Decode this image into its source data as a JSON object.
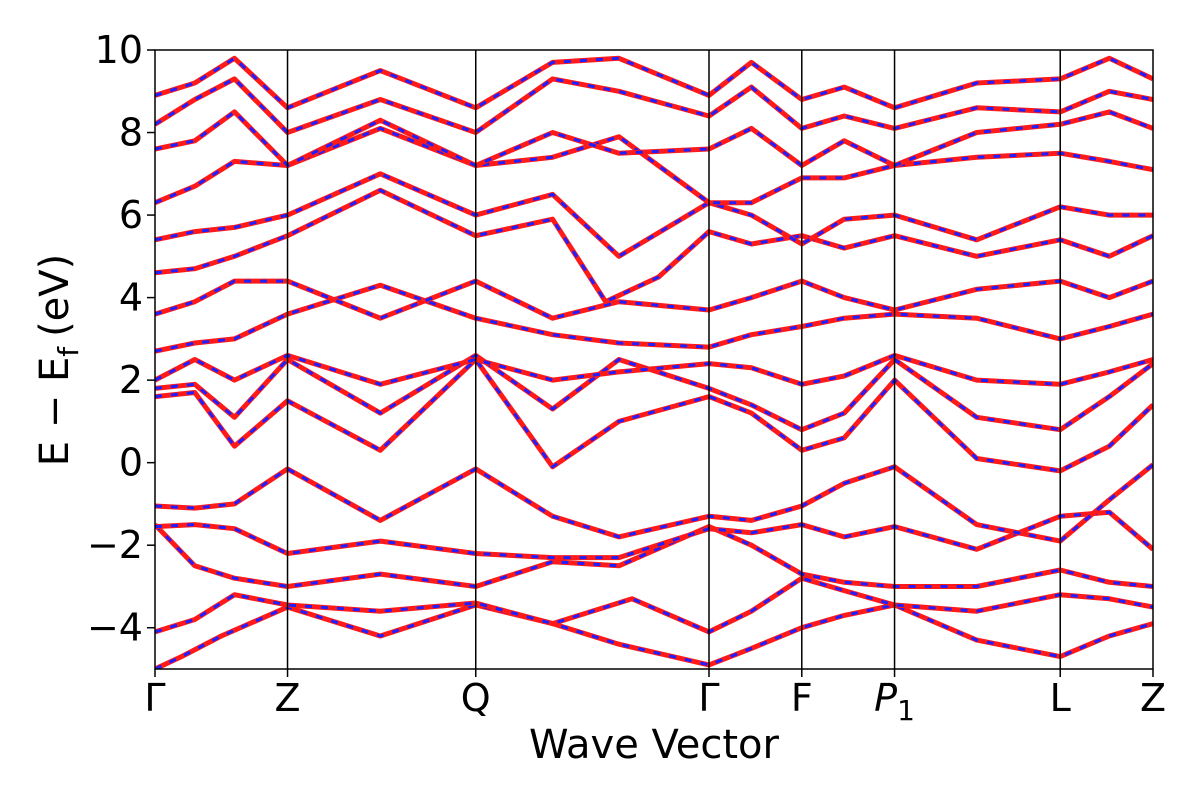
{
  "chart_data": {
    "type": "line",
    "title": "",
    "xlabel": "Wave Vector",
    "ylabel_main": "E − E",
    "ylabel_sub": "f",
    "ylabel_unit": "(eV)",
    "ylim": [
      -5,
      10
    ],
    "yticks": [
      {
        "value": 10,
        "label": "10"
      },
      {
        "value": 8,
        "label": "8"
      },
      {
        "value": 6,
        "label": "6"
      },
      {
        "value": 4,
        "label": "4"
      },
      {
        "value": 2,
        "label": "2"
      },
      {
        "value": 0,
        "label": "0"
      },
      {
        "value": -2,
        "label": "−2"
      },
      {
        "value": -4,
        "label": "−4"
      }
    ],
    "kpath": [
      {
        "value": 0.0,
        "label": "Γ"
      },
      {
        "value": 1.0,
        "label": "Z"
      },
      {
        "value": 2.42,
        "label": "Q"
      },
      {
        "value": 4.18,
        "label": "Γ"
      },
      {
        "value": 4.88,
        "label": "F"
      },
      {
        "value": 5.58,
        "label": "P",
        "subscript": "1"
      },
      {
        "value": 6.83,
        "label": "L"
      },
      {
        "value": 7.53,
        "label": "Z"
      }
    ],
    "series": [
      {
        "color": "#ff1a1a",
        "style": "solid"
      },
      {
        "color": "#1f1fff",
        "style": "dashed"
      }
    ],
    "bands": [
      [
        [
          0,
          -5.0
        ],
        [
          0.2,
          -4.7
        ],
        [
          0.5,
          -4.2
        ],
        [
          1.0,
          -3.5
        ],
        [
          1.7,
          -4.2
        ],
        [
          2.42,
          -3.45
        ],
        [
          3.0,
          -3.9
        ],
        [
          3.5,
          -4.4
        ],
        [
          4.18,
          -4.9
        ],
        [
          4.5,
          -4.5
        ],
        [
          4.88,
          -4.0
        ],
        [
          5.2,
          -3.7
        ],
        [
          5.58,
          -3.45
        ],
        [
          6.2,
          -4.3
        ],
        [
          6.83,
          -4.7
        ],
        [
          7.2,
          -4.2
        ],
        [
          7.53,
          -3.9
        ]
      ],
      [
        [
          0,
          -4.1
        ],
        [
          0.3,
          -3.8
        ],
        [
          0.6,
          -3.2
        ],
        [
          1.0,
          -3.45
        ],
        [
          1.7,
          -3.6
        ],
        [
          2.42,
          -3.4
        ],
        [
          3.0,
          -3.9
        ],
        [
          3.6,
          -3.3
        ],
        [
          4.18,
          -4.1
        ],
        [
          4.5,
          -3.6
        ],
        [
          4.88,
          -2.8
        ],
        [
          5.2,
          -3.1
        ],
        [
          5.58,
          -3.45
        ],
        [
          6.2,
          -3.6
        ],
        [
          6.83,
          -3.2
        ],
        [
          7.2,
          -3.3
        ],
        [
          7.53,
          -3.5
        ]
      ],
      [
        [
          0,
          -1.5
        ],
        [
          0.3,
          -2.5
        ],
        [
          0.6,
          -2.8
        ],
        [
          1.0,
          -3.0
        ],
        [
          1.7,
          -2.7
        ],
        [
          2.42,
          -3.0
        ],
        [
          3.0,
          -2.4
        ],
        [
          3.5,
          -2.5
        ],
        [
          4.18,
          -1.55
        ],
        [
          4.5,
          -2.0
        ],
        [
          4.88,
          -2.7
        ],
        [
          5.2,
          -2.9
        ],
        [
          5.58,
          -3.0
        ],
        [
          6.2,
          -3.0
        ],
        [
          6.83,
          -2.6
        ],
        [
          7.2,
          -2.9
        ],
        [
          7.53,
          -3.0
        ]
      ],
      [
        [
          0,
          -1.55
        ],
        [
          0.3,
          -1.5
        ],
        [
          0.6,
          -1.6
        ],
        [
          1.0,
          -2.2
        ],
        [
          1.7,
          -1.9
        ],
        [
          2.42,
          -2.2
        ],
        [
          3.0,
          -2.3
        ],
        [
          3.5,
          -2.3
        ],
        [
          4.18,
          -1.6
        ],
        [
          4.5,
          -1.7
        ],
        [
          4.88,
          -1.5
        ],
        [
          5.2,
          -1.8
        ],
        [
          5.58,
          -1.55
        ],
        [
          6.2,
          -2.1
        ],
        [
          6.83,
          -1.3
        ],
        [
          7.2,
          -1.2
        ],
        [
          7.53,
          -2.1
        ]
      ],
      [
        [
          0,
          -1.05
        ],
        [
          0.3,
          -1.1
        ],
        [
          0.6,
          -1.0
        ],
        [
          1.0,
          -0.15
        ],
        [
          1.7,
          -1.4
        ],
        [
          2.42,
          -0.15
        ],
        [
          3.0,
          -1.3
        ],
        [
          3.5,
          -1.8
        ],
        [
          4.18,
          -1.3
        ],
        [
          4.5,
          -1.4
        ],
        [
          4.88,
          -1.05
        ],
        [
          5.2,
          -0.5
        ],
        [
          5.58,
          -0.1
        ],
        [
          6.2,
          -1.5
        ],
        [
          6.83,
          -1.9
        ],
        [
          7.2,
          -0.9
        ],
        [
          7.53,
          -0.05
        ]
      ],
      [
        [
          0,
          1.6
        ],
        [
          0.3,
          1.7
        ],
        [
          0.6,
          0.4
        ],
        [
          1.0,
          1.5
        ],
        [
          1.7,
          0.3
        ],
        [
          2.42,
          2.5
        ],
        [
          3.0,
          -0.1
        ],
        [
          3.5,
          1.0
        ],
        [
          4.18,
          1.6
        ],
        [
          4.5,
          1.2
        ],
        [
          4.88,
          0.3
        ],
        [
          5.2,
          0.6
        ],
        [
          5.58,
          2.0
        ],
        [
          6.2,
          0.1
        ],
        [
          6.83,
          -0.2
        ],
        [
          7.2,
          0.4
        ],
        [
          7.53,
          1.4
        ]
      ],
      [
        [
          0,
          1.8
        ],
        [
          0.3,
          1.9
        ],
        [
          0.6,
          1.1
        ],
        [
          1.0,
          2.5
        ],
        [
          1.7,
          1.2
        ],
        [
          2.42,
          2.6
        ],
        [
          3.0,
          1.3
        ],
        [
          3.5,
          2.5
        ],
        [
          4.18,
          1.8
        ],
        [
          4.5,
          1.4
        ],
        [
          4.88,
          0.8
        ],
        [
          5.2,
          1.2
        ],
        [
          5.58,
          2.5
        ],
        [
          6.2,
          1.1
        ],
        [
          6.83,
          0.8
        ],
        [
          7.2,
          1.6
        ],
        [
          7.53,
          2.4
        ]
      ],
      [
        [
          0,
          2.0
        ],
        [
          0.3,
          2.5
        ],
        [
          0.6,
          2.0
        ],
        [
          1.0,
          2.6
        ],
        [
          1.7,
          1.9
        ],
        [
          2.42,
          2.5
        ],
        [
          3.0,
          2.0
        ],
        [
          3.5,
          2.2
        ],
        [
          4.18,
          2.4
        ],
        [
          4.5,
          2.3
        ],
        [
          4.88,
          1.9
        ],
        [
          5.2,
          2.1
        ],
        [
          5.58,
          2.6
        ],
        [
          6.2,
          2.0
        ],
        [
          6.83,
          1.9
        ],
        [
          7.2,
          2.2
        ],
        [
          7.53,
          2.5
        ]
      ],
      [
        [
          0,
          2.7
        ],
        [
          0.3,
          2.9
        ],
        [
          0.6,
          3.0
        ],
        [
          1.0,
          3.6
        ],
        [
          1.7,
          4.3
        ],
        [
          2.42,
          3.5
        ],
        [
          3.0,
          3.1
        ],
        [
          3.5,
          2.9
        ],
        [
          4.18,
          2.8
        ],
        [
          4.5,
          3.1
        ],
        [
          4.88,
          3.3
        ],
        [
          5.2,
          3.5
        ],
        [
          5.58,
          3.6
        ],
        [
          6.2,
          3.5
        ],
        [
          6.83,
          3.0
        ],
        [
          7.2,
          3.3
        ],
        [
          7.53,
          3.6
        ]
      ],
      [
        [
          0,
          3.6
        ],
        [
          0.3,
          3.9
        ],
        [
          0.6,
          4.4
        ],
        [
          1.0,
          4.4
        ],
        [
          1.7,
          3.5
        ],
        [
          2.42,
          4.4
        ],
        [
          3.0,
          3.5
        ],
        [
          3.5,
          3.9
        ],
        [
          4.18,
          3.7
        ],
        [
          4.5,
          4.0
        ],
        [
          4.88,
          4.4
        ],
        [
          5.2,
          4.0
        ],
        [
          5.58,
          3.7
        ],
        [
          6.2,
          4.2
        ],
        [
          6.83,
          4.4
        ],
        [
          7.2,
          4.0
        ],
        [
          7.53,
          4.4
        ]
      ],
      [
        [
          0,
          4.6
        ],
        [
          0.3,
          4.7
        ],
        [
          0.6,
          5.0
        ],
        [
          1.0,
          5.5
        ],
        [
          1.7,
          6.6
        ],
        [
          2.42,
          5.5
        ],
        [
          3.0,
          5.9
        ],
        [
          3.4,
          3.9
        ],
        [
          3.8,
          4.5
        ],
        [
          4.18,
          5.6
        ],
        [
          4.5,
          5.3
        ],
        [
          4.88,
          5.5
        ],
        [
          5.2,
          5.2
        ],
        [
          5.58,
          5.5
        ],
        [
          6.2,
          5.0
        ],
        [
          6.83,
          5.4
        ],
        [
          7.2,
          5.0
        ],
        [
          7.53,
          5.5
        ]
      ],
      [
        [
          0,
          5.4
        ],
        [
          0.3,
          5.6
        ],
        [
          0.6,
          5.7
        ],
        [
          1.0,
          6.0
        ],
        [
          1.7,
          7.0
        ],
        [
          2.42,
          6.0
        ],
        [
          3.0,
          6.5
        ],
        [
          3.5,
          5.0
        ],
        [
          4.18,
          6.3
        ],
        [
          4.5,
          6.0
        ],
        [
          4.88,
          5.3
        ],
        [
          5.2,
          5.9
        ],
        [
          5.58,
          6.0
        ],
        [
          6.2,
          5.4
        ],
        [
          6.83,
          6.2
        ],
        [
          7.2,
          6.0
        ],
        [
          7.53,
          6.0
        ]
      ],
      [
        [
          0,
          6.3
        ],
        [
          0.3,
          6.7
        ],
        [
          0.6,
          7.3
        ],
        [
          1.0,
          7.2
        ],
        [
          1.7,
          8.1
        ],
        [
          2.42,
          7.2
        ],
        [
          3.0,
          7.4
        ],
        [
          3.5,
          7.9
        ],
        [
          4.18,
          6.3
        ],
        [
          4.5,
          6.3
        ],
        [
          4.88,
          6.9
        ],
        [
          5.2,
          6.9
        ],
        [
          5.58,
          7.2
        ],
        [
          6.2,
          7.4
        ],
        [
          6.83,
          7.5
        ],
        [
          7.2,
          7.3
        ],
        [
          7.53,
          7.1
        ]
      ],
      [
        [
          0,
          7.6
        ],
        [
          0.3,
          7.8
        ],
        [
          0.6,
          8.5
        ],
        [
          1.0,
          7.2
        ],
        [
          1.7,
          8.3
        ],
        [
          2.42,
          7.2
        ],
        [
          3.0,
          8.0
        ],
        [
          3.5,
          7.5
        ],
        [
          4.18,
          7.6
        ],
        [
          4.5,
          8.1
        ],
        [
          4.88,
          7.2
        ],
        [
          5.2,
          7.8
        ],
        [
          5.58,
          7.2
        ],
        [
          6.2,
          8.0
        ],
        [
          6.83,
          8.2
        ],
        [
          7.2,
          8.5
        ],
        [
          7.53,
          8.1
        ]
      ],
      [
        [
          0,
          8.2
        ],
        [
          0.3,
          8.8
        ],
        [
          0.6,
          9.3
        ],
        [
          1.0,
          8.0
        ],
        [
          1.7,
          8.8
        ],
        [
          2.42,
          8.0
        ],
        [
          3.0,
          9.3
        ],
        [
          3.5,
          9.0
        ],
        [
          4.18,
          8.4
        ],
        [
          4.5,
          9.1
        ],
        [
          4.88,
          8.1
        ],
        [
          5.2,
          8.4
        ],
        [
          5.58,
          8.1
        ],
        [
          6.2,
          8.6
        ],
        [
          6.83,
          8.5
        ],
        [
          7.2,
          9.0
        ],
        [
          7.53,
          8.8
        ]
      ],
      [
        [
          0,
          8.9
        ],
        [
          0.3,
          9.2
        ],
        [
          0.6,
          9.8
        ],
        [
          1.0,
          8.6
        ],
        [
          1.7,
          9.5
        ],
        [
          2.42,
          8.6
        ],
        [
          3.0,
          9.7
        ],
        [
          3.5,
          9.8
        ],
        [
          4.18,
          8.9
        ],
        [
          4.5,
          9.7
        ],
        [
          4.88,
          8.8
        ],
        [
          5.2,
          9.1
        ],
        [
          5.58,
          8.6
        ],
        [
          6.2,
          9.2
        ],
        [
          6.83,
          9.3
        ],
        [
          7.2,
          9.8
        ],
        [
          7.53,
          9.3
        ]
      ]
    ]
  }
}
